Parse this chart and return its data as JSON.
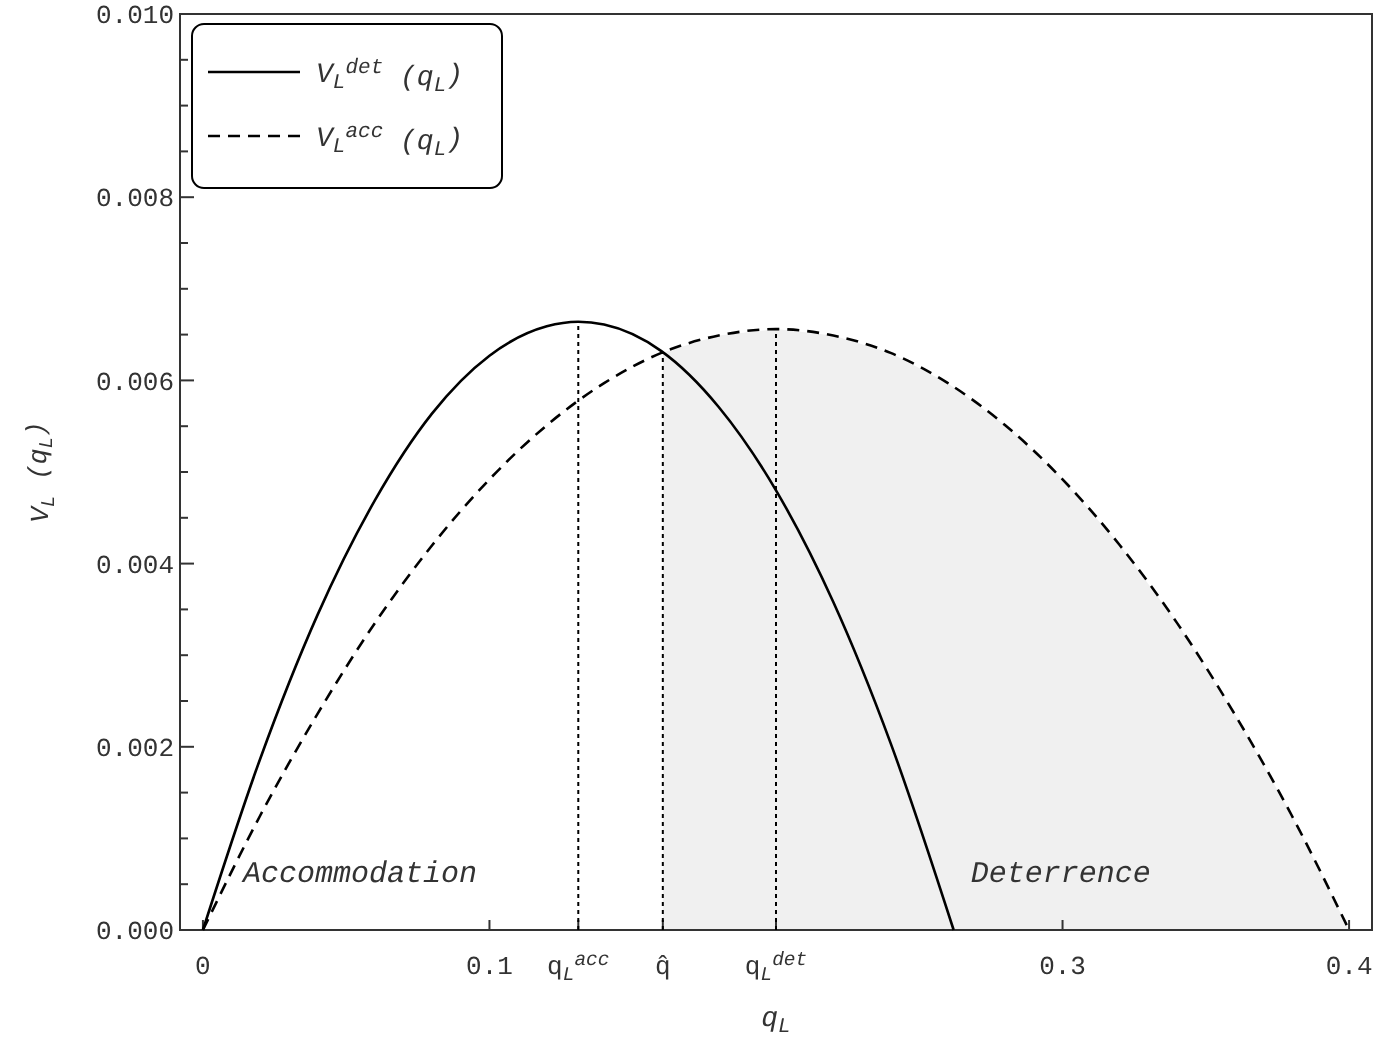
{
  "chart_data": {
    "type": "line",
    "xlabel": "q$_{L}$",
    "ylabel": "V$_{L}$ (q$_{L}$)",
    "xlim": [
      -0.008,
      0.408
    ],
    "ylim": [
      0,
      0.01
    ],
    "xticks": [
      0,
      0.1,
      {
        "value": 0.131,
        "label": "q$_{L}$$^{acc}$"
      },
      {
        "value": 0.1605,
        "label": "q̂"
      },
      {
        "value": 0.2,
        "label": "q$_{L}$$^{det}$"
      },
      0.3,
      0.4
    ],
    "yticks": [
      {
        "value": 0,
        "label": "0.000"
      },
      {
        "value": 0.0005,
        "label": null
      },
      {
        "value": 0.001,
        "label": null
      },
      {
        "value": 0.0015,
        "label": null
      },
      {
        "value": 0.002,
        "label": "0.002"
      },
      {
        "value": 0.0025,
        "label": null
      },
      {
        "value": 0.003,
        "label": null
      },
      {
        "value": 0.0035,
        "label": null
      },
      {
        "value": 0.004,
        "label": "0.004"
      },
      {
        "value": 0.0045,
        "label": null
      },
      {
        "value": 0.005,
        "label": null
      },
      {
        "value": 0.0055,
        "label": null
      },
      {
        "value": 0.006,
        "label": "0.006"
      },
      {
        "value": 0.0065,
        "label": null
      },
      {
        "value": 0.007,
        "label": null
      },
      {
        "value": 0.0075,
        "label": null
      },
      {
        "value": 0.008,
        "label": "0.008"
      },
      {
        "value": 0.0085,
        "label": null
      },
      {
        "value": 0.009,
        "label": null
      },
      {
        "value": 0.0095,
        "label": null
      },
      {
        "value": 0.01,
        "label": "0.010"
      }
    ],
    "legend": "top left",
    "grid": false,
    "series": [
      {
        "name": "V$_{L}$$^{det}$ (q$_{L}$)",
        "color": "#000000",
        "line_style": "solid",
        "x": [
          0,
          0.02,
          0.04,
          0.06,
          0.08,
          0.1,
          0.12,
          0.131,
          0.14,
          0.16,
          0.18,
          0.2,
          0.22,
          0.24,
          0.262
        ],
        "values": [
          0,
          0.00187,
          0.00344,
          0.00469,
          0.00564,
          0.00627,
          0.00659,
          0.00664,
          0.00661,
          0.00632,
          0.00571,
          0.0048,
          0.00358,
          0.00204,
          0
        ]
      },
      {
        "name": "V$_{L}$$^{acc}$ (q$_{L}$)",
        "color": "#000000",
        "line_style": "dashed",
        "x": [
          0,
          0.02,
          0.04,
          0.06,
          0.08,
          0.1,
          0.12,
          0.14,
          0.16,
          0.18,
          0.2,
          0.22,
          0.24,
          0.26,
          0.28,
          0.3,
          0.32,
          0.34,
          0.36,
          0.38,
          0.4
        ],
        "values": [
          0,
          0.00125,
          0.00236,
          0.00335,
          0.0042,
          0.00492,
          0.00551,
          0.00597,
          0.0063,
          0.00649,
          0.00656,
          0.00649,
          0.0063,
          0.00597,
          0.00551,
          0.00492,
          0.0042,
          0.00335,
          0.00236,
          0.00125,
          0
        ]
      }
    ],
    "ref_lines": [
      {
        "axis": "x",
        "value": 0.131,
        "line_style": "dotted"
      },
      {
        "axis": "x",
        "value": 0.1605,
        "line_style": "dotted"
      },
      {
        "axis": "x",
        "value": 0.2,
        "line_style": "dotted"
      }
    ],
    "bands": [
      {
        "axis": "x",
        "from": 0.1605,
        "to": 0.4,
        "color": "#f0f0f0"
      }
    ],
    "annotations": [
      "Accommodation",
      "Deterrence"
    ]
  }
}
